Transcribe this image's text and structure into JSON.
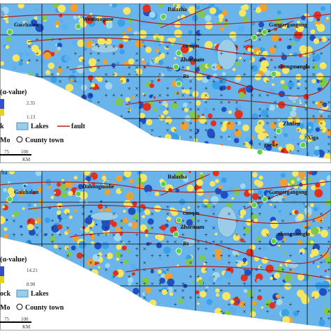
{
  "panels": [
    {
      "places": [
        "Balazha",
        "Wenbuoguoe",
        "Gaizhalan",
        "nima",
        "Gangzegangong",
        "cuoqin",
        "Zharinam",
        "Rt",
        "zhongmongla",
        "Zhafen",
        "gueke",
        "Xiga"
      ],
      "legend": {
        "title": "(α-value)",
        "high": "2.35",
        "low": "1.13",
        "rock": "k",
        "lakes": "Lakes",
        "fault": "fault",
        "mo": "Mo",
        "county": "County town",
        "scale": [
          "75",
          "100"
        ],
        "unit": "KM"
      }
    },
    {
      "corner": "ba",
      "places": [
        "Balazha",
        "Dahongmolie",
        "Gaizhalan",
        "nima",
        "Gangzegangong",
        "cuoqin",
        "Zharinam",
        "Rt",
        "zhongmongla"
      ],
      "legend": {
        "title": "(α-value)",
        "high": "14.21",
        "low": "8.90",
        "rock": "ock",
        "lakes": "Lakes",
        "mo": "Mo",
        "county": "County town",
        "scale": [
          "75",
          "100"
        ],
        "unit": "KM"
      }
    }
  ]
}
